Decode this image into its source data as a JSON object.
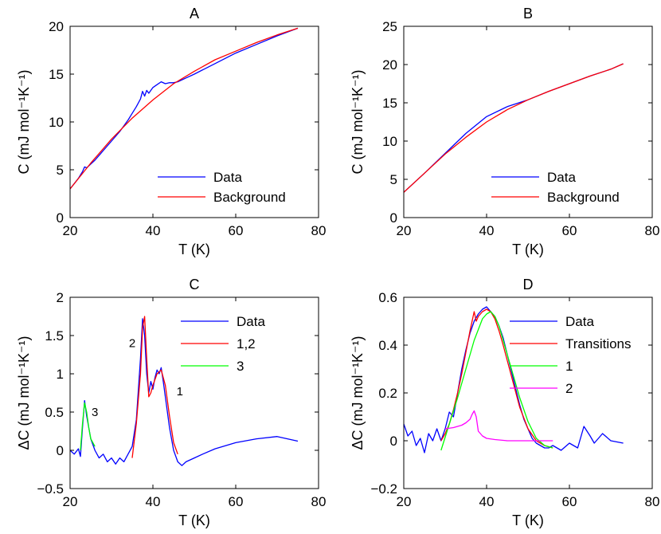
{
  "chart_data": [
    {
      "id": "A",
      "type": "line",
      "title": "A",
      "xlabel": "T (K)",
      "ylabel": "C (mJ mol⁻¹K⁻¹)",
      "xlim": [
        20,
        80
      ],
      "ylim": [
        0,
        20
      ],
      "xticks": [
        20,
        40,
        60,
        80
      ],
      "yticks": [
        0,
        5,
        10,
        15,
        20
      ],
      "xtick_labels": [
        "20",
        "40",
        "60",
        "80"
      ],
      "ytick_labels": [
        "0",
        "5",
        "10",
        "15",
        "20"
      ],
      "legend_position": "bottom-right",
      "series": [
        {
          "name": "Data",
          "color": "#0000ff",
          "x": [
            20,
            22,
            23,
            23.5,
            24,
            25,
            26,
            28,
            30,
            32,
            34,
            35,
            36,
            37,
            37.5,
            38,
            38.5,
            39,
            40,
            41,
            42,
            43,
            44,
            45,
            46,
            48,
            50,
            55,
            60,
            65,
            70,
            75
          ],
          "y": [
            3.0,
            4.1,
            4.8,
            5.3,
            5.2,
            5.6,
            6.0,
            7.0,
            8.0,
            9.0,
            10.2,
            10.9,
            11.6,
            12.4,
            13.2,
            12.7,
            13.3,
            13.0,
            13.6,
            13.9,
            14.2,
            14.0,
            14.1,
            14.1,
            14.2,
            14.6,
            15.0,
            16.1,
            17.2,
            18.1,
            19.0,
            19.8
          ]
        },
        {
          "name": "Background",
          "color": "#ff0000",
          "x": [
            20,
            25,
            30,
            35,
            40,
            45,
            50,
            55,
            60,
            65,
            70,
            75
          ],
          "y": [
            3.0,
            5.7,
            8.2,
            10.4,
            12.3,
            14.0,
            15.3,
            16.5,
            17.4,
            18.3,
            19.1,
            19.8
          ]
        }
      ]
    },
    {
      "id": "B",
      "type": "line",
      "title": "B",
      "xlabel": "T (K)",
      "ylabel": "C (mJ mol⁻¹K⁻¹)",
      "xlim": [
        20,
        80
      ],
      "ylim": [
        0,
        25
      ],
      "xticks": [
        20,
        40,
        60,
        80
      ],
      "yticks": [
        0,
        5,
        10,
        15,
        20,
        25
      ],
      "xtick_labels": [
        "20",
        "40",
        "60",
        "80"
      ],
      "ytick_labels": [
        "0",
        "5",
        "10",
        "15",
        "20",
        "25"
      ],
      "legend_position": "bottom-right",
      "series": [
        {
          "name": "Data",
          "color": "#0000ff",
          "x": [
            20,
            25,
            30,
            35,
            40,
            45,
            50,
            55,
            60,
            65,
            70,
            73
          ],
          "y": [
            3.3,
            5.8,
            8.4,
            11.0,
            13.2,
            14.5,
            15.4,
            16.5,
            17.5,
            18.5,
            19.4,
            20.1
          ]
        },
        {
          "name": "Background",
          "color": "#ff0000",
          "x": [
            20,
            25,
            30,
            35,
            40,
            45,
            50,
            55,
            60,
            65,
            70,
            73
          ],
          "y": [
            3.3,
            5.8,
            8.3,
            10.5,
            12.5,
            14.1,
            15.4,
            16.5,
            17.5,
            18.5,
            19.4,
            20.1
          ]
        }
      ]
    },
    {
      "id": "C",
      "type": "line",
      "title": "C",
      "xlabel": "T (K)",
      "ylabel": "ΔC (mJ mol⁻¹K⁻¹)",
      "xlim": [
        20,
        80
      ],
      "ylim": [
        -0.5,
        2
      ],
      "xticks": [
        20,
        40,
        60,
        80
      ],
      "yticks": [
        -0.5,
        0,
        0.5,
        1,
        1.5,
        2
      ],
      "xtick_labels": [
        "20",
        "40",
        "60",
        "80"
      ],
      "ytick_labels": [
        "−0.5",
        "0",
        "0.5",
        "1",
        "1.5",
        "2"
      ],
      "legend_position": "top-right",
      "annotations": [
        {
          "text": "2",
          "x": 35,
          "y": 1.35
        },
        {
          "text": "1",
          "x": 46.5,
          "y": 0.72
        },
        {
          "text": "3",
          "x": 26,
          "y": 0.45
        }
      ],
      "series": [
        {
          "name": "Data",
          "color": "#0000ff",
          "x": [
            20,
            21,
            22,
            22.5,
            23,
            23.5,
            24,
            24.5,
            25,
            26,
            27,
            28,
            29,
            30,
            31,
            32,
            33,
            34,
            35,
            36,
            37,
            37.5,
            38,
            38.5,
            39,
            39.5,
            40,
            40.5,
            41,
            41.5,
            42,
            42.5,
            43,
            44,
            45,
            46,
            47,
            48,
            50,
            52,
            55,
            60,
            65,
            70,
            75
          ],
          "y": [
            0.0,
            -0.05,
            0.02,
            -0.08,
            0.3,
            0.65,
            0.45,
            0.3,
            0.15,
            0.0,
            -0.1,
            -0.05,
            -0.15,
            -0.1,
            -0.18,
            -0.1,
            -0.15,
            -0.05,
            0.05,
            0.4,
            1.2,
            1.72,
            1.5,
            1.0,
            0.75,
            0.9,
            0.8,
            0.95,
            1.05,
            1.0,
            1.08,
            0.9,
            0.7,
            0.3,
            0.0,
            -0.15,
            -0.2,
            -0.15,
            -0.1,
            -0.05,
            0.02,
            0.1,
            0.15,
            0.18,
            0.12
          ]
        },
        {
          "name": "1,2",
          "color": "#ff0000",
          "x": [
            35,
            36,
            37,
            37.5,
            38,
            38.5,
            39,
            39.5,
            40,
            41,
            42,
            43,
            44,
            45,
            46
          ],
          "y": [
            -0.1,
            0.35,
            1.0,
            1.6,
            1.75,
            1.2,
            0.7,
            0.75,
            0.85,
            1.0,
            1.05,
            0.85,
            0.45,
            0.1,
            -0.05
          ]
        },
        {
          "name": "3",
          "color": "#00ff00",
          "x": [
            22.5,
            23,
            23.5,
            24,
            24.5,
            25,
            26
          ],
          "y": [
            0.0,
            0.35,
            0.62,
            0.5,
            0.3,
            0.15,
            0.05
          ]
        }
      ]
    },
    {
      "id": "D",
      "type": "line",
      "title": "D",
      "xlabel": "T (K)",
      "ylabel": "ΔC (mJ mol⁻¹K⁻¹)",
      "xlim": [
        20,
        80
      ],
      "ylim": [
        -0.2,
        0.6
      ],
      "xticks": [
        20,
        40,
        60,
        80
      ],
      "yticks": [
        -0.2,
        0,
        0.2,
        0.4,
        0.6
      ],
      "xtick_labels": [
        "20",
        "40",
        "60",
        "80"
      ],
      "ytick_labels": [
        "−0.2",
        "0",
        "0.2",
        "0.4",
        "0.6"
      ],
      "legend_position": "top-right",
      "series": [
        {
          "name": "Data",
          "color": "#0000ff",
          "x": [
            20,
            21,
            22,
            23,
            24,
            25,
            26,
            27,
            28,
            29,
            30,
            31,
            32,
            33,
            34,
            35,
            36,
            37,
            38,
            39,
            40,
            41,
            42,
            43,
            44,
            45,
            46,
            47,
            48,
            49,
            50,
            51,
            52,
            53,
            54,
            55,
            56,
            58,
            60,
            62,
            63.5,
            65,
            66,
            68,
            70,
            73
          ],
          "y": [
            0.07,
            0.02,
            0.04,
            -0.02,
            0.01,
            -0.05,
            0.03,
            0.0,
            0.05,
            0.0,
            0.05,
            0.12,
            0.1,
            0.2,
            0.3,
            0.38,
            0.45,
            0.5,
            0.53,
            0.55,
            0.56,
            0.54,
            0.52,
            0.48,
            0.43,
            0.36,
            0.29,
            0.22,
            0.15,
            0.09,
            0.05,
            0.01,
            -0.01,
            -0.02,
            -0.03,
            -0.03,
            -0.02,
            -0.04,
            -0.01,
            -0.03,
            0.06,
            0.02,
            -0.01,
            0.03,
            0.0,
            -0.01
          ]
        },
        {
          "name": "Transitions",
          "color": "#ff0000",
          "x": [
            29,
            30,
            31,
            32,
            33,
            34,
            35,
            36,
            37,
            37.5,
            38,
            39,
            40,
            41,
            42,
            43,
            44,
            46,
            48,
            50,
            52,
            54,
            56
          ],
          "y": [
            0.0,
            0.03,
            0.07,
            0.13,
            0.2,
            0.28,
            0.37,
            0.46,
            0.54,
            0.5,
            0.52,
            0.54,
            0.55,
            0.54,
            0.51,
            0.46,
            0.4,
            0.27,
            0.14,
            0.05,
            0.0,
            -0.02,
            -0.03
          ]
        },
        {
          "name": "1",
          "color": "#00ff00",
          "x": [
            29,
            31,
            33,
            35,
            37,
            39,
            40,
            41,
            42,
            43,
            44,
            46,
            48,
            50,
            52,
            54,
            56
          ],
          "y": [
            -0.04,
            0.07,
            0.18,
            0.3,
            0.42,
            0.51,
            0.53,
            0.54,
            0.52,
            0.48,
            0.42,
            0.3,
            0.18,
            0.08,
            0.01,
            -0.02,
            -0.03
          ]
        },
        {
          "name": "2",
          "color": "#ff00ff",
          "x": [
            30,
            32,
            34,
            35,
            36,
            36.5,
            37,
            37.5,
            38,
            39,
            40,
            42,
            45,
            50,
            55,
            56
          ],
          "y": [
            0.05,
            0.055,
            0.065,
            0.075,
            0.09,
            0.11,
            0.125,
            0.1,
            0.04,
            0.02,
            0.01,
            0.005,
            0.0,
            0.0,
            0.0,
            0.0
          ]
        }
      ]
    }
  ]
}
